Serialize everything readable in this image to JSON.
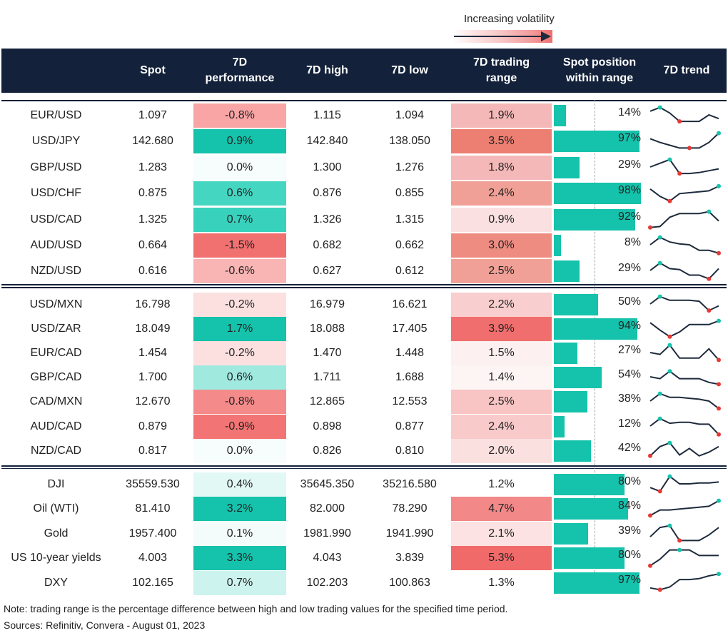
{
  "legend": {
    "label": "Increasing volatility"
  },
  "columns": [
    "",
    "Spot",
    "7D\nperformance",
    "7D high",
    "7D low",
    "7D trading\nrange",
    "Spot position\nwithin range",
    "7D trend"
  ],
  "rows": [
    {
      "name": "EUR/USD",
      "spot": "1.097",
      "perf": "-0.8%",
      "perf_color": "#f9a5a5",
      "high": "1.115",
      "low": "1.094",
      "range": "1.9%",
      "range_color": "#f5b8b8",
      "position": "14%",
      "position_fraction": 0.14,
      "trend": [
        0.3,
        0.1,
        0.4,
        0.85,
        0.85,
        0.85,
        0.5,
        0.7
      ],
      "trend_max": 1,
      "trend_min": 3
    },
    {
      "name": "USD/JPY",
      "spot": "142.680",
      "perf": "0.9%",
      "perf_color": "#15c2ab",
      "high": "142.840",
      "low": "138.050",
      "range": "3.5%",
      "range_color": "#ec7e72",
      "position": "97%",
      "position_fraction": 0.97,
      "trend": [
        0.4,
        0.6,
        0.75,
        0.9,
        0.9,
        0.9,
        0.6,
        0.1
      ],
      "trend_max": 7,
      "trend_min": 4
    },
    {
      "name": "GBP/USD",
      "spot": "1.283",
      "perf": "0.0%",
      "perf_color": "#f6fdfc",
      "high": "1.300",
      "low": "1.276",
      "range": "1.8%",
      "range_color": "#f5b8b8",
      "position": "29%",
      "position_fraction": 0.29,
      "trend": [
        0.5,
        0.3,
        0.1,
        0.85,
        0.85,
        0.8,
        0.7,
        0.6
      ],
      "trend_max": 2,
      "trend_min": 3
    },
    {
      "name": "USD/CHF",
      "spot": "0.875",
      "perf": "0.6%",
      "perf_color": "#45d6c2",
      "high": "0.876",
      "low": "0.855",
      "range": "2.4%",
      "range_color": "#f0a096",
      "position": "98%",
      "position_fraction": 0.98,
      "trend": [
        0.3,
        0.7,
        0.95,
        0.55,
        0.5,
        0.45,
        0.4,
        0.15
      ],
      "trend_max": 7,
      "trend_min": 2
    },
    {
      "name": "USD/CAD",
      "spot": "1.325",
      "perf": "0.7%",
      "perf_color": "#38d1bc",
      "high": "1.326",
      "low": "1.315",
      "range": "0.9%",
      "range_color": "#fae0e0",
      "position": "92%",
      "position_fraction": 0.92,
      "trend": [
        0.95,
        0.9,
        0.4,
        0.2,
        0.2,
        0.2,
        0.1,
        0.6
      ],
      "trend_max": 6,
      "trend_min": 0
    },
    {
      "name": "AUD/USD",
      "spot": "0.664",
      "perf": "-1.5%",
      "perf_color": "#f17070",
      "high": "0.682",
      "low": "0.662",
      "range": "3.0%",
      "range_color": "#ef8c82",
      "position": "8%",
      "position_fraction": 0.08,
      "trend": [
        0.5,
        0.1,
        0.35,
        0.45,
        0.5,
        0.8,
        0.8,
        0.95
      ],
      "trend_max": 1,
      "trend_min": 7
    },
    {
      "name": "NZD/USD",
      "spot": "0.616",
      "perf": "-0.6%",
      "perf_color": "#f9b4b4",
      "high": "0.627",
      "low": "0.612",
      "range": "2.5%",
      "range_color": "#f0a096",
      "position": "29%",
      "position_fraction": 0.29,
      "trend": [
        0.5,
        0.1,
        0.4,
        0.45,
        0.75,
        0.75,
        0.95,
        0.4
      ],
      "trend_max": 1,
      "trend_min": 6
    },
    {
      "name": "USD/MXN",
      "spot": "16.798",
      "perf": "-0.2%",
      "perf_color": "#fce0e0",
      "high": "16.979",
      "low": "16.621",
      "range": "2.2%",
      "range_color": "#f8cece",
      "position": "50%",
      "position_fraction": 0.5,
      "trend": [
        0.5,
        0.1,
        0.3,
        0.3,
        0.3,
        0.35,
        0.85,
        0.6
      ],
      "trend_max": 1,
      "trend_min": 6
    },
    {
      "name": "USD/ZAR",
      "spot": "18.049",
      "perf": "1.7%",
      "perf_color": "#15c2ab",
      "high": "18.088",
      "low": "17.405",
      "range": "3.9%",
      "range_color": "#f16e6e",
      "position": "94%",
      "position_fraction": 0.94,
      "trend": [
        0.2,
        0.6,
        0.95,
        0.7,
        0.3,
        0.3,
        0.3,
        0.1
      ],
      "trend_max": 7,
      "trend_min": 2
    },
    {
      "name": "EUR/CAD",
      "spot": "1.454",
      "perf": "-0.2%",
      "perf_color": "#fce0e0",
      "high": "1.470",
      "low": "1.448",
      "range": "1.5%",
      "range_color": "#fdf0f0",
      "position": "27%",
      "position_fraction": 0.27,
      "trend": [
        0.5,
        0.6,
        0.1,
        0.8,
        0.8,
        0.8,
        0.3,
        0.9
      ],
      "trend_max": 2,
      "trend_min": 7
    },
    {
      "name": "GBP/CAD",
      "spot": "1.700",
      "perf": "0.6%",
      "perf_color": "#9fe9df",
      "high": "1.711",
      "low": "1.688",
      "range": "1.4%",
      "range_color": "#fdf4f4",
      "position": "54%",
      "position_fraction": 0.54,
      "trend": [
        0.5,
        0.6,
        0.2,
        0.6,
        0.6,
        0.6,
        0.8,
        0.9
      ],
      "trend_max": 2,
      "trend_min": 7
    },
    {
      "name": "CAD/MXN",
      "spot": "12.670",
      "perf": "-0.8%",
      "perf_color": "#f48a8a",
      "high": "12.865",
      "low": "12.553",
      "range": "2.5%",
      "range_color": "#f8c4c4",
      "position": "38%",
      "position_fraction": 0.38,
      "trend": [
        0.5,
        0.1,
        0.3,
        0.3,
        0.35,
        0.4,
        0.5,
        0.9
      ],
      "trend_max": 1,
      "trend_min": 7
    },
    {
      "name": "AUD/CAD",
      "spot": "0.879",
      "perf": "-0.9%",
      "perf_color": "#f27474",
      "high": "0.898",
      "low": "0.877",
      "range": "2.4%",
      "range_color": "#f8caca",
      "position": "12%",
      "position_fraction": 0.12,
      "trend": [
        0.5,
        0.1,
        0.35,
        0.3,
        0.3,
        0.4,
        0.4,
        0.95
      ],
      "trend_max": 1,
      "trend_min": 7
    },
    {
      "name": "NZD/CAD",
      "spot": "0.817",
      "perf": "0.0%",
      "perf_color": "#f7fdfd",
      "high": "0.826",
      "low": "0.810",
      "range": "2.0%",
      "range_color": "#fbe0e0",
      "position": "42%",
      "position_fraction": 0.42,
      "trend": [
        0.8,
        0.3,
        0.1,
        0.75,
        0.4,
        0.8,
        0.6,
        0.3
      ],
      "trend_max": 2,
      "trend_min": 0
    },
    {
      "name": "DJI",
      "spot": "35559.530",
      "perf": "0.4%",
      "perf_color": "#e2f8f5",
      "high": "35645.350",
      "low": "35216.580",
      "range": "1.2%",
      "range_color": "#ffffff",
      "position": "80%",
      "position_fraction": 0.8,
      "trend": [
        0.7,
        0.9,
        0.1,
        0.5,
        0.5,
        0.45,
        0.45,
        0.4
      ],
      "trend_max": 2,
      "trend_min": 1
    },
    {
      "name": "Oil (WTI)",
      "spot": "81.410",
      "perf": "3.2%",
      "perf_color": "#15c2ab",
      "high": "82.000",
      "low": "78.290",
      "range": "4.7%",
      "range_color": "#f28888",
      "position": "84%",
      "position_fraction": 0.84,
      "trend": [
        0.9,
        0.6,
        0.6,
        0.55,
        0.5,
        0.45,
        0.4,
        0.1
      ],
      "trend_max": 7,
      "trend_min": 0
    },
    {
      "name": "Gold",
      "spot": "1957.400",
      "perf": "0.1%",
      "perf_color": "#f3fcfb",
      "high": "1981.990",
      "low": "1941.990",
      "range": "2.1%",
      "range_color": "#fce2e2",
      "position": "39%",
      "position_fraction": 0.39,
      "trend": [
        0.7,
        0.2,
        0.1,
        0.9,
        0.9,
        0.9,
        0.6,
        0.2
      ],
      "trend_max": 2,
      "trend_min": 3
    },
    {
      "name": "US 10-year yields",
      "spot": "4.003",
      "perf": "3.3%",
      "perf_color": "#15c2ab",
      "high": "4.043",
      "low": "3.839",
      "range": "5.3%",
      "range_color": "#f16a6a",
      "position": "80%",
      "position_fraction": 0.8,
      "trend": [
        0.95,
        0.6,
        0.1,
        0.1,
        0.1,
        0.4,
        0.4,
        0.4
      ],
      "trend_max": 3,
      "trend_min": 0
    },
    {
      "name": "DXY",
      "spot": "102.165",
      "perf": "0.7%",
      "perf_color": "#cdf3ee",
      "high": "102.203",
      "low": "100.863",
      "range": "1.3%",
      "range_color": "#ffffff",
      "position": "97%",
      "position_fraction": 0.97,
      "trend": [
        0.8,
        0.9,
        0.75,
        0.35,
        0.35,
        0.3,
        0.15,
        0.05
      ],
      "trend_max": 7,
      "trend_min": 1
    }
  ],
  "colors": {
    "header_bg": "#13213a",
    "bar": "#15c2ab",
    "trend_line": "#1e2a3c",
    "trend_high": "#15c2ab",
    "trend_low": "#e53935"
  },
  "footer": {
    "note": "Note: trading range is the percentage difference between high and low trading values for the specified time period.",
    "sources": "Sources: Refinitiv, Convera - August 01, 2023"
  }
}
